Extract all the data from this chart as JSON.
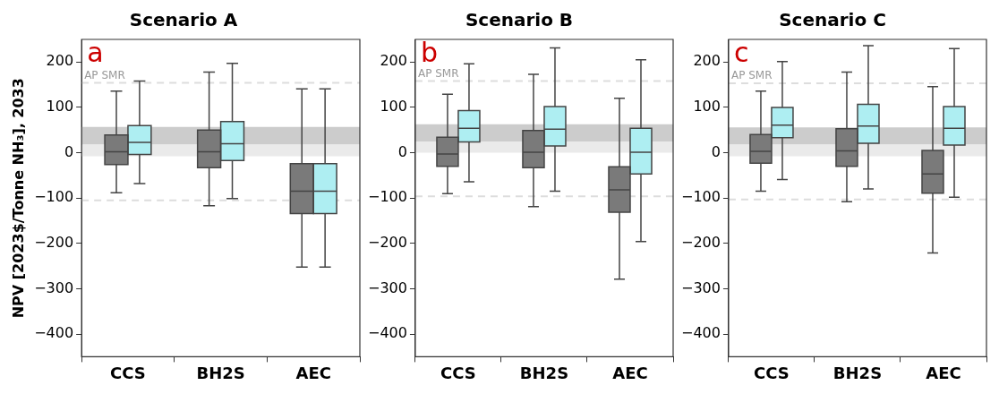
{
  "chart_data": [
    {
      "type": "box",
      "title": "Scenario A",
      "ylabel": "NPV [2023$/Tonne NH₃], 2033",
      "categories": [
        "CCS",
        "BH2S",
        "AEC"
      ],
      "ylim": [
        -450,
        250
      ],
      "yticks": [
        -400,
        -300,
        -200,
        -100,
        0,
        100,
        200
      ],
      "grid": false,
      "annotations": [
        "a"
      ],
      "series": [
        {
          "color": "#7a7a7a",
          "boxes": [
            {
              "low": -88,
              "q1": -26,
              "median": 2,
              "q3": 39,
              "high": 136
            },
            {
              "low": -117,
              "q1": -33,
              "median": 2,
              "q3": 50,
              "high": 178
            },
            {
              "low": -252,
              "q1": -134,
              "median": -85,
              "q3": -24,
              "high": 141
            }
          ]
        },
        {
          "color": "#aeeef2",
          "boxes": [
            {
              "low": -68,
              "q1": -4,
              "median": 23,
              "q3": 60,
              "high": 158
            },
            {
              "low": -101,
              "q1": -17,
              "median": 20,
              "q3": 69,
              "high": 197
            },
            {
              "low": -252,
              "q1": -134,
              "median": -85,
              "q3": -24,
              "high": 141
            }
          ]
        }
      ],
      "ref_lines": [
        {
          "axis": "y",
          "value": 154,
          "label": "AP SMR",
          "color": "#dddddd",
          "line_style": "dashed"
        },
        {
          "axis": "y",
          "value": -105,
          "color": "#dddddd",
          "line_style": "dashed"
        }
      ],
      "bands": [
        {
          "axis": "y",
          "from": 18,
          "to": 57,
          "color": "#cccccc"
        },
        {
          "axis": "y",
          "from": -8,
          "to": 18,
          "color": "#eaeaea"
        }
      ]
    },
    {
      "type": "box",
      "title": "Scenario B",
      "categories": [
        "CCS",
        "BH2S",
        "AEC"
      ],
      "ylim": [
        -450,
        250
      ],
      "yticks": [
        -400,
        -300,
        -200,
        -100,
        0,
        100,
        200
      ],
      "grid": false,
      "annotations": [
        "b"
      ],
      "series": [
        {
          "color": "#7a7a7a",
          "boxes": [
            {
              "low": -90,
              "q1": -30,
              "median": -3,
              "q3": 34,
              "high": 129
            },
            {
              "low": -119,
              "q1": -33,
              "median": 1,
              "q3": 49,
              "high": 173
            },
            {
              "low": -279,
              "q1": -131,
              "median": -82,
              "q3": -31,
              "high": 120
            }
          ]
        },
        {
          "color": "#aeeef2",
          "boxes": [
            {
              "low": -64,
              "q1": 24,
              "median": 54,
              "q3": 93,
              "high": 196
            },
            {
              "low": -85,
              "q1": 15,
              "median": 52,
              "q3": 102,
              "high": 231
            },
            {
              "low": -196,
              "q1": -47,
              "median": 1,
              "q3": 54,
              "high": 205
            }
          ]
        }
      ],
      "ref_lines": [
        {
          "axis": "y",
          "value": 158,
          "label": "AP SMR",
          "color": "#dddddd",
          "line_style": "dashed"
        },
        {
          "axis": "y",
          "value": -96,
          "color": "#dddddd",
          "line_style": "dashed"
        }
      ],
      "bands": [
        {
          "axis": "y",
          "from": 25,
          "to": 63,
          "color": "#cccccc"
        },
        {
          "axis": "y",
          "from": 0,
          "to": 25,
          "color": "#eaeaea"
        }
      ]
    },
    {
      "type": "box",
      "title": "Scenario C",
      "categories": [
        "CCS",
        "BH2S",
        "AEC"
      ],
      "ylim": [
        -450,
        250
      ],
      "yticks": [
        -400,
        -300,
        -200,
        -100,
        0,
        100,
        200
      ],
      "grid": false,
      "annotations": [
        "c"
      ],
      "series": [
        {
          "color": "#7a7a7a",
          "boxes": [
            {
              "low": -85,
              "q1": -23,
              "median": 3,
              "q3": 40,
              "high": 136
            },
            {
              "low": -108,
              "q1": -30,
              "median": 4,
              "q3": 53,
              "high": 178
            },
            {
              "low": -221,
              "q1": -89,
              "median": -47,
              "q3": 5,
              "high": 146
            }
          ]
        },
        {
          "color": "#aeeef2",
          "boxes": [
            {
              "low": -59,
              "q1": 33,
              "median": 61,
              "q3": 100,
              "high": 201
            },
            {
              "low": -80,
              "q1": 21,
              "median": 59,
              "q3": 107,
              "high": 236
            },
            {
              "low": -98,
              "q1": 17,
              "median": 54,
              "q3": 102,
              "high": 230
            }
          ]
        }
      ],
      "ref_lines": [
        {
          "axis": "y",
          "value": 153,
          "label": "AP SMR",
          "color": "#dddddd",
          "line_style": "dashed"
        },
        {
          "axis": "y",
          "value": -103,
          "color": "#dddddd",
          "line_style": "dashed"
        }
      ],
      "bands": [
        {
          "axis": "y",
          "from": 18,
          "to": 56,
          "color": "#cccccc"
        },
        {
          "axis": "y",
          "from": -8,
          "to": 18,
          "color": "#eaeaea"
        }
      ]
    }
  ]
}
